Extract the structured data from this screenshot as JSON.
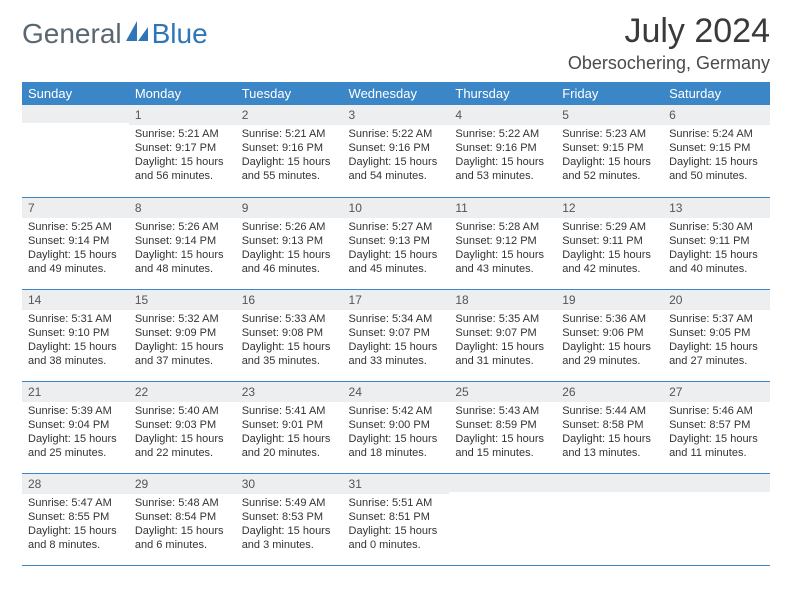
{
  "logo": {
    "text1": "General",
    "text2": "Blue",
    "accent_color": "#2f76b8",
    "text_color": "#5a6670"
  },
  "title": "July 2024",
  "location": "Obersochering, Germany",
  "colors": {
    "header_bg": "#3b86c6",
    "header_text": "#ffffff",
    "daynum_bg": "#eceeef",
    "row_border": "#3b86c6",
    "body_text": "#333333",
    "page_bg": "#ffffff"
  },
  "weekdays": [
    "Sunday",
    "Monday",
    "Tuesday",
    "Wednesday",
    "Thursday",
    "Friday",
    "Saturday"
  ],
  "weeks": [
    [
      {
        "n": "",
        "lines": []
      },
      {
        "n": "1",
        "lines": [
          "Sunrise: 5:21 AM",
          "Sunset: 9:17 PM",
          "Daylight: 15 hours",
          "and 56 minutes."
        ]
      },
      {
        "n": "2",
        "lines": [
          "Sunrise: 5:21 AM",
          "Sunset: 9:16 PM",
          "Daylight: 15 hours",
          "and 55 minutes."
        ]
      },
      {
        "n": "3",
        "lines": [
          "Sunrise: 5:22 AM",
          "Sunset: 9:16 PM",
          "Daylight: 15 hours",
          "and 54 minutes."
        ]
      },
      {
        "n": "4",
        "lines": [
          "Sunrise: 5:22 AM",
          "Sunset: 9:16 PM",
          "Daylight: 15 hours",
          "and 53 minutes."
        ]
      },
      {
        "n": "5",
        "lines": [
          "Sunrise: 5:23 AM",
          "Sunset: 9:15 PM",
          "Daylight: 15 hours",
          "and 52 minutes."
        ]
      },
      {
        "n": "6",
        "lines": [
          "Sunrise: 5:24 AM",
          "Sunset: 9:15 PM",
          "Daylight: 15 hours",
          "and 50 minutes."
        ]
      }
    ],
    [
      {
        "n": "7",
        "lines": [
          "Sunrise: 5:25 AM",
          "Sunset: 9:14 PM",
          "Daylight: 15 hours",
          "and 49 minutes."
        ]
      },
      {
        "n": "8",
        "lines": [
          "Sunrise: 5:26 AM",
          "Sunset: 9:14 PM",
          "Daylight: 15 hours",
          "and 48 minutes."
        ]
      },
      {
        "n": "9",
        "lines": [
          "Sunrise: 5:26 AM",
          "Sunset: 9:13 PM",
          "Daylight: 15 hours",
          "and 46 minutes."
        ]
      },
      {
        "n": "10",
        "lines": [
          "Sunrise: 5:27 AM",
          "Sunset: 9:13 PM",
          "Daylight: 15 hours",
          "and 45 minutes."
        ]
      },
      {
        "n": "11",
        "lines": [
          "Sunrise: 5:28 AM",
          "Sunset: 9:12 PM",
          "Daylight: 15 hours",
          "and 43 minutes."
        ]
      },
      {
        "n": "12",
        "lines": [
          "Sunrise: 5:29 AM",
          "Sunset: 9:11 PM",
          "Daylight: 15 hours",
          "and 42 minutes."
        ]
      },
      {
        "n": "13",
        "lines": [
          "Sunrise: 5:30 AM",
          "Sunset: 9:11 PM",
          "Daylight: 15 hours",
          "and 40 minutes."
        ]
      }
    ],
    [
      {
        "n": "14",
        "lines": [
          "Sunrise: 5:31 AM",
          "Sunset: 9:10 PM",
          "Daylight: 15 hours",
          "and 38 minutes."
        ]
      },
      {
        "n": "15",
        "lines": [
          "Sunrise: 5:32 AM",
          "Sunset: 9:09 PM",
          "Daylight: 15 hours",
          "and 37 minutes."
        ]
      },
      {
        "n": "16",
        "lines": [
          "Sunrise: 5:33 AM",
          "Sunset: 9:08 PM",
          "Daylight: 15 hours",
          "and 35 minutes."
        ]
      },
      {
        "n": "17",
        "lines": [
          "Sunrise: 5:34 AM",
          "Sunset: 9:07 PM",
          "Daylight: 15 hours",
          "and 33 minutes."
        ]
      },
      {
        "n": "18",
        "lines": [
          "Sunrise: 5:35 AM",
          "Sunset: 9:07 PM",
          "Daylight: 15 hours",
          "and 31 minutes."
        ]
      },
      {
        "n": "19",
        "lines": [
          "Sunrise: 5:36 AM",
          "Sunset: 9:06 PM",
          "Daylight: 15 hours",
          "and 29 minutes."
        ]
      },
      {
        "n": "20",
        "lines": [
          "Sunrise: 5:37 AM",
          "Sunset: 9:05 PM",
          "Daylight: 15 hours",
          "and 27 minutes."
        ]
      }
    ],
    [
      {
        "n": "21",
        "lines": [
          "Sunrise: 5:39 AM",
          "Sunset: 9:04 PM",
          "Daylight: 15 hours",
          "and 25 minutes."
        ]
      },
      {
        "n": "22",
        "lines": [
          "Sunrise: 5:40 AM",
          "Sunset: 9:03 PM",
          "Daylight: 15 hours",
          "and 22 minutes."
        ]
      },
      {
        "n": "23",
        "lines": [
          "Sunrise: 5:41 AM",
          "Sunset: 9:01 PM",
          "Daylight: 15 hours",
          "and 20 minutes."
        ]
      },
      {
        "n": "24",
        "lines": [
          "Sunrise: 5:42 AM",
          "Sunset: 9:00 PM",
          "Daylight: 15 hours",
          "and 18 minutes."
        ]
      },
      {
        "n": "25",
        "lines": [
          "Sunrise: 5:43 AM",
          "Sunset: 8:59 PM",
          "Daylight: 15 hours",
          "and 15 minutes."
        ]
      },
      {
        "n": "26",
        "lines": [
          "Sunrise: 5:44 AM",
          "Sunset: 8:58 PM",
          "Daylight: 15 hours",
          "and 13 minutes."
        ]
      },
      {
        "n": "27",
        "lines": [
          "Sunrise: 5:46 AM",
          "Sunset: 8:57 PM",
          "Daylight: 15 hours",
          "and 11 minutes."
        ]
      }
    ],
    [
      {
        "n": "28",
        "lines": [
          "Sunrise: 5:47 AM",
          "Sunset: 8:55 PM",
          "Daylight: 15 hours",
          "and 8 minutes."
        ]
      },
      {
        "n": "29",
        "lines": [
          "Sunrise: 5:48 AM",
          "Sunset: 8:54 PM",
          "Daylight: 15 hours",
          "and 6 minutes."
        ]
      },
      {
        "n": "30",
        "lines": [
          "Sunrise: 5:49 AM",
          "Sunset: 8:53 PM",
          "Daylight: 15 hours",
          "and 3 minutes."
        ]
      },
      {
        "n": "31",
        "lines": [
          "Sunrise: 5:51 AM",
          "Sunset: 8:51 PM",
          "Daylight: 15 hours",
          "and 0 minutes."
        ]
      },
      {
        "n": "",
        "lines": []
      },
      {
        "n": "",
        "lines": []
      },
      {
        "n": "",
        "lines": []
      }
    ]
  ]
}
